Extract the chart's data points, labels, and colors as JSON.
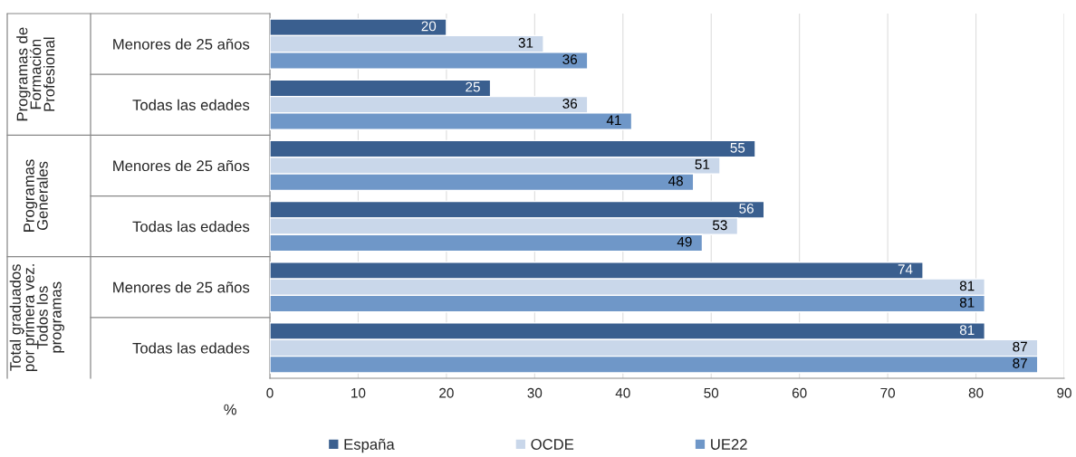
{
  "chart_data": {
    "type": "bar",
    "orientation": "horizontal",
    "categories": [
      "Menores de 25 años",
      "Todas las edades",
      "Menores de 25 años",
      "Todas las edades",
      "Menores de 25 años",
      "Todas las edades"
    ],
    "series": [
      {
        "name": "España",
        "color": "#3a5f8f",
        "values": [
          20,
          25,
          55,
          56,
          74,
          81
        ]
      },
      {
        "name": "OCDE",
        "color": "#c9d7ea",
        "values": [
          31,
          36,
          51,
          53,
          81,
          87
        ]
      },
      {
        "name": "UE22",
        "color": "#6f97c8",
        "values": [
          36,
          41,
          48,
          49,
          81,
          87
        ]
      }
    ],
    "annotations": [
      "Programas de\nFormación\nProfesional",
      "Programas\nGenerales",
      "Total graduados\npor primera vez.\nTodos los\nprogramas"
    ],
    "xlabel": "%",
    "xlim": [
      0,
      90
    ],
    "xticks": [
      0,
      10,
      20,
      30,
      40,
      50,
      60,
      70,
      80,
      90
    ],
    "grid": "x",
    "legend": "bottom",
    "data_labels": true
  }
}
